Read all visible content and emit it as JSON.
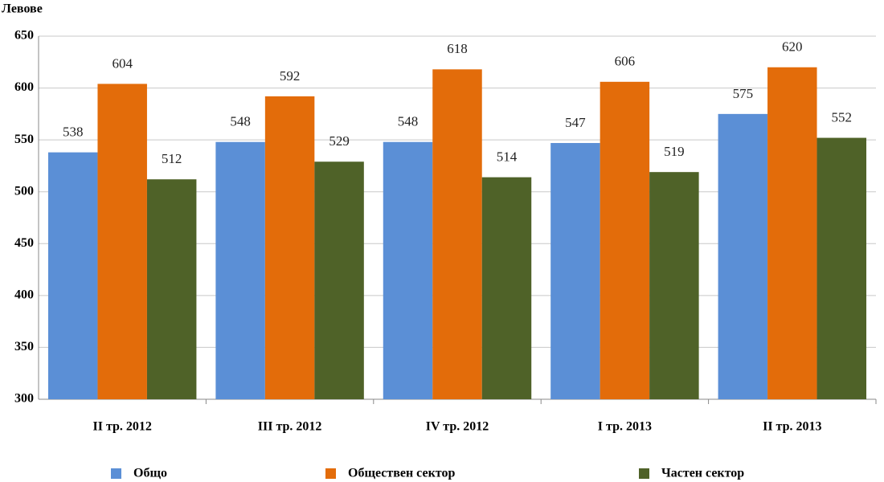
{
  "chart_data": {
    "type": "bar",
    "y_label": "Левове",
    "categories": [
      "II тр. 2012",
      "III тр. 2012",
      "IV тр. 2012",
      "I тр. 2013",
      "II тр. 2013"
    ],
    "series": [
      {
        "name": "Общо",
        "color": "#5b8fd6",
        "values": [
          538,
          548,
          548,
          547,
          575
        ]
      },
      {
        "name": "Обществен сектор",
        "color": "#e36c0a",
        "values": [
          604,
          592,
          618,
          606,
          620
        ]
      },
      {
        "name": "Частен сектор",
        "color": "#4f6228",
        "values": [
          512,
          529,
          514,
          519,
          552
        ]
      }
    ],
    "ylim": [
      300,
      650
    ],
    "yticks": [
      300,
      350,
      400,
      450,
      500,
      550,
      600,
      650
    ],
    "grid": true
  }
}
